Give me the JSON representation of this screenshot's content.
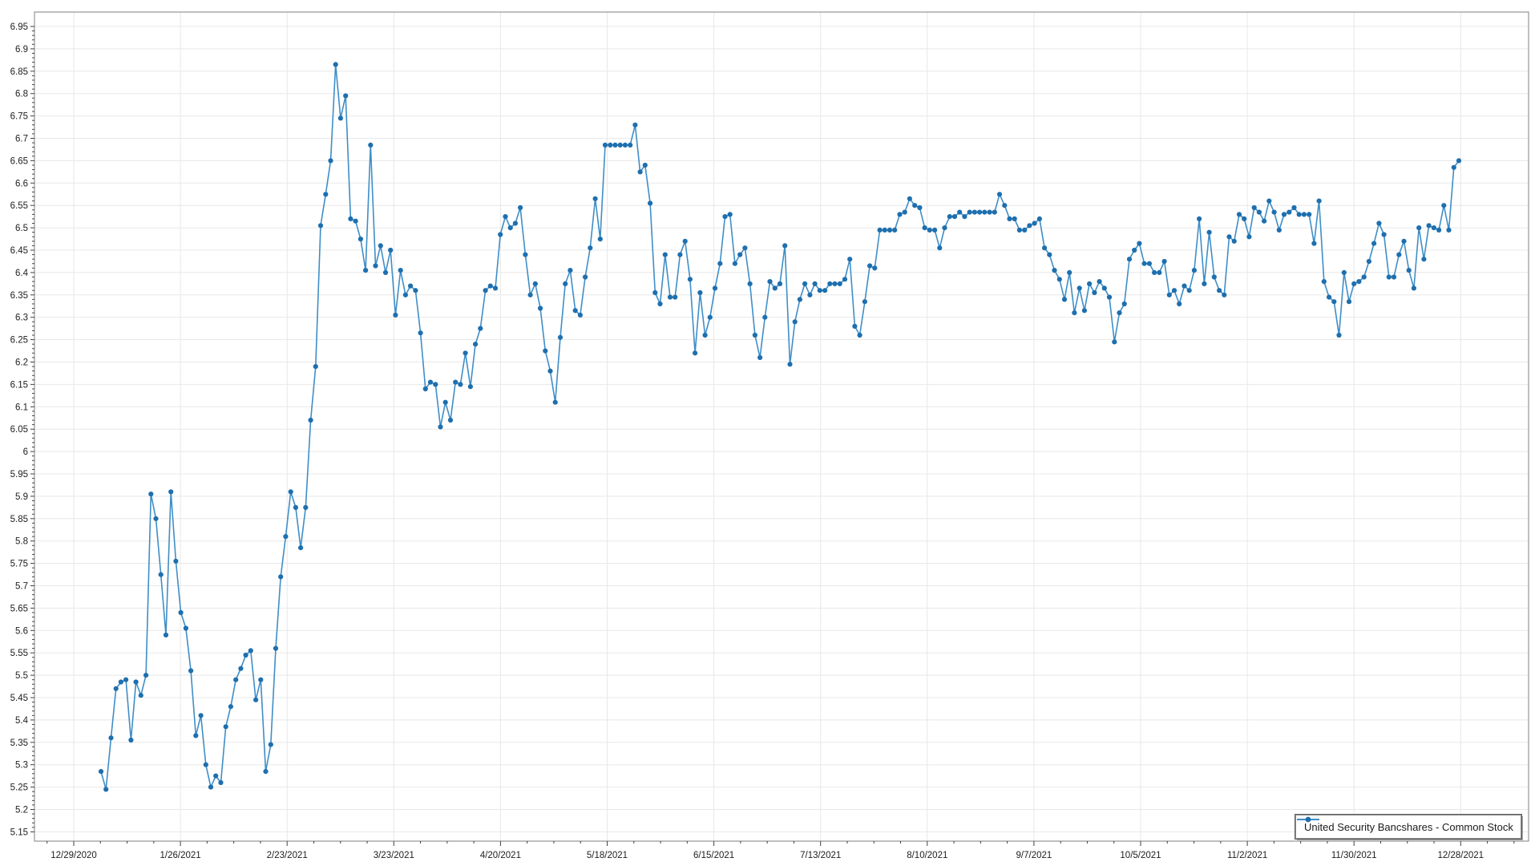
{
  "legend": {
    "label": "United Security Bancshares - Common Stock"
  },
  "chart_data": {
    "type": "line",
    "title": "",
    "xlabel": "",
    "ylabel": "",
    "grid": true,
    "legend_position": "bottom-right",
    "y_axis": {
      "min": 5.15,
      "max": 6.95,
      "major_step": 0.05,
      "minor_step": 0.01,
      "tick_labels": [
        "6.95",
        "6.9",
        "6.85",
        "6.8",
        "6.75",
        "6.7",
        "6.65",
        "6.6",
        "6.55",
        "6.5",
        "6.45",
        "6.4",
        "6.35",
        "6.3",
        "6.25",
        "6.2",
        "6.15",
        "6.1",
        "6.05",
        "6",
        "5.95",
        "5.9",
        "5.85",
        "5.8",
        "5.75",
        "5.7",
        "5.65",
        "5.6",
        "5.55",
        "5.5",
        "5.45",
        "5.4",
        "5.35",
        "5.3",
        "5.25",
        "5.2",
        "5.15"
      ]
    },
    "x_axis": {
      "tick_labels": [
        "12/29/2020",
        "1/26/2021",
        "2/23/2021",
        "3/23/2021",
        "4/20/2021",
        "5/18/2021",
        "6/15/2021",
        "7/13/2021",
        "8/10/2021",
        "9/7/2021",
        "10/5/2021",
        "11/2/2021",
        "11/30/2021",
        "12/28/2021"
      ],
      "minor_ticks_per_interval": 4
    },
    "colors": {
      "line": "#3f8ec7",
      "marker": "#1e6fae",
      "grid": "#e8e8e8",
      "border": "#7f7f7f",
      "tick": "#404040",
      "label": "#202020"
    },
    "series": [
      {
        "name": "United Security Bancshares - Common Stock",
        "values": [
          5.285,
          5.245,
          5.36,
          5.47,
          5.485,
          5.49,
          5.355,
          5.485,
          5.455,
          5.5,
          5.905,
          5.85,
          5.725,
          5.59,
          5.91,
          5.755,
          5.64,
          5.605,
          5.51,
          5.365,
          5.41,
          5.3,
          5.25,
          5.275,
          5.26,
          5.385,
          5.43,
          5.49,
          5.515,
          5.545,
          5.555,
          5.445,
          5.49,
          5.285,
          5.345,
          5.56,
          5.72,
          5.81,
          5.91,
          5.875,
          5.785,
          5.875,
          6.07,
          6.19,
          6.505,
          6.575,
          6.65,
          6.865,
          6.745,
          6.795,
          6.52,
          6.515,
          6.475,
          6.405,
          6.685,
          6.415,
          6.46,
          6.4,
          6.45,
          6.305,
          6.405,
          6.35,
          6.37,
          6.36,
          6.265,
          6.14,
          6.155,
          6.15,
          6.055,
          6.11,
          6.07,
          6.155,
          6.15,
          6.22,
          6.145,
          6.24,
          6.275,
          6.36,
          6.37,
          6.365,
          6.485,
          6.525,
          6.5,
          6.51,
          6.545,
          6.44,
          6.35,
          6.375,
          6.32,
          6.225,
          6.18,
          6.11,
          6.255,
          6.375,
          6.405,
          6.315,
          6.305,
          6.39,
          6.455,
          6.565,
          6.475,
          6.685,
          6.685,
          6.685,
          6.685,
          6.685,
          6.685,
          6.73,
          6.625,
          6.64,
          6.555,
          6.355,
          6.33,
          6.44,
          6.345,
          6.345,
          6.44,
          6.47,
          6.385,
          6.22,
          6.355,
          6.26,
          6.3,
          6.365,
          6.42,
          6.525,
          6.53,
          6.42,
          6.44,
          6.455,
          6.375,
          6.26,
          6.21,
          6.3,
          6.38,
          6.365,
          6.375,
          6.46,
          6.195,
          6.29,
          6.34,
          6.375,
          6.35,
          6.375,
          6.36,
          6.36,
          6.375,
          6.375,
          6.375,
          6.385,
          6.43,
          6.28,
          6.26,
          6.335,
          6.415,
          6.41,
          6.495,
          6.495,
          6.495,
          6.495,
          6.53,
          6.535,
          6.565,
          6.55,
          6.545,
          6.5,
          6.495,
          6.495,
          6.455,
          6.5,
          6.525,
          6.525,
          6.535,
          6.525,
          6.535,
          6.535,
          6.535,
          6.535,
          6.535,
          6.535,
          6.575,
          6.55,
          6.52,
          6.52,
          6.495,
          6.495,
          6.505,
          6.51,
          6.52,
          6.455,
          6.44,
          6.405,
          6.385,
          6.34,
          6.4,
          6.31,
          6.365,
          6.315,
          6.375,
          6.355,
          6.38,
          6.365,
          6.345,
          6.245,
          6.31,
          6.33,
          6.43,
          6.45,
          6.465,
          6.42,
          6.42,
          6.4,
          6.4,
          6.425,
          6.35,
          6.36,
          6.33,
          6.37,
          6.36,
          6.405,
          6.52,
          6.375,
          6.49,
          6.39,
          6.36,
          6.35,
          6.48,
          6.47,
          6.53,
          6.52,
          6.48,
          6.545,
          6.535,
          6.515,
          6.56,
          6.535,
          6.495,
          6.53,
          6.535,
          6.545,
          6.53,
          6.53,
          6.53,
          6.465,
          6.56,
          6.38,
          6.345,
          6.335,
          6.26,
          6.4,
          6.335,
          6.375,
          6.38,
          6.39,
          6.425,
          6.465,
          6.51,
          6.485,
          6.39,
          6.39,
          6.44,
          6.47,
          6.405,
          6.365,
          6.5,
          6.43,
          6.505,
          6.5,
          6.495,
          6.55,
          6.495,
          6.635,
          6.65
        ]
      }
    ]
  }
}
